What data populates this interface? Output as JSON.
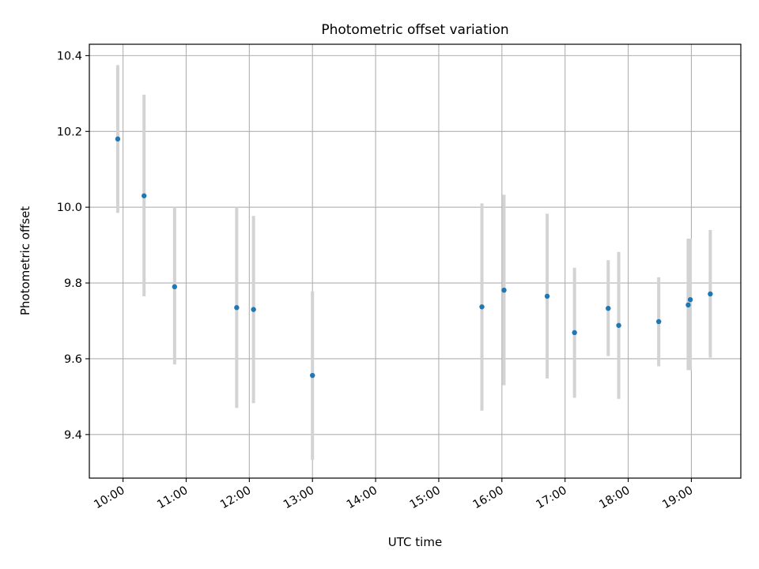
{
  "chart_data": {
    "type": "scatter",
    "title": "Photometric offset variation",
    "xlabel": "UTC time",
    "ylabel": "Photometric offset",
    "x_tick_labels": [
      "10:00",
      "11:00",
      "12:00",
      "13:00",
      "14:00",
      "15:00",
      "16:00",
      "17:00",
      "18:00",
      "19:00"
    ],
    "y_tick_labels": [
      "9.4",
      "9.6",
      "9.8",
      "10.0",
      "10.2",
      "10.4"
    ],
    "y_ticks": [
      9.4,
      9.6,
      9.8,
      10.0,
      10.2,
      10.4
    ],
    "xlim": [
      "09:28",
      "19:47"
    ],
    "ylim": [
      9.285,
      10.43
    ],
    "grid": true,
    "error_bars": true,
    "points": [
      {
        "x": "09:55",
        "y": 10.18,
        "ylow": 9.985,
        "yhigh": 10.375
      },
      {
        "x": "10:20",
        "y": 10.03,
        "ylow": 9.765,
        "yhigh": 10.297
      },
      {
        "x": "10:49",
        "y": 9.79,
        "ylow": 9.585,
        "yhigh": 10.0
      },
      {
        "x": "11:48",
        "y": 9.735,
        "ylow": 9.47,
        "yhigh": 10.0
      },
      {
        "x": "12:04",
        "y": 9.73,
        "ylow": 9.483,
        "yhigh": 9.977
      },
      {
        "x": "13:00",
        "y": 9.556,
        "ylow": 9.333,
        "yhigh": 9.778
      },
      {
        "x": "15:41",
        "y": 9.737,
        "ylow": 9.463,
        "yhigh": 10.01
      },
      {
        "x": "16:02",
        "y": 9.781,
        "ylow": 9.53,
        "yhigh": 10.033
      },
      {
        "x": "16:43",
        "y": 9.765,
        "ylow": 9.548,
        "yhigh": 9.983
      },
      {
        "x": "17:09",
        "y": 9.669,
        "ylow": 9.497,
        "yhigh": 9.84
      },
      {
        "x": "17:41",
        "y": 9.733,
        "ylow": 9.607,
        "yhigh": 9.86
      },
      {
        "x": "17:51",
        "y": 9.688,
        "ylow": 9.494,
        "yhigh": 9.882
      },
      {
        "x": "18:29",
        "y": 9.698,
        "ylow": 9.58,
        "yhigh": 9.815
      },
      {
        "x": "18:57",
        "y": 9.742,
        "ylow": 9.57,
        "yhigh": 9.917
      },
      {
        "x": "18:59",
        "y": 9.756,
        "ylow": 9.57,
        "yhigh": 9.917
      },
      {
        "x": "19:18",
        "y": 9.771,
        "ylow": 9.603,
        "yhigh": 9.94
      }
    ],
    "colors": {
      "marker": "#1f77b4",
      "error_bar": "#d3d3d3",
      "grid": "#b0b0b0",
      "axes": "#000000"
    }
  }
}
